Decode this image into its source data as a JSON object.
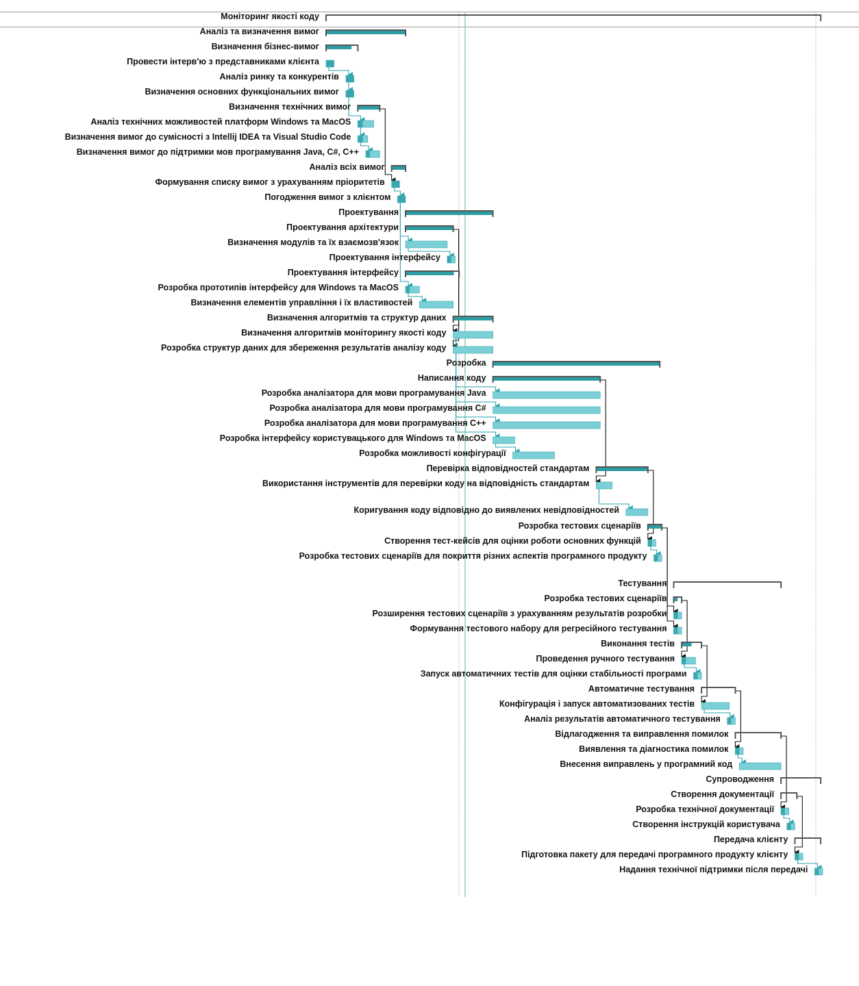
{
  "colors": {
    "summary_bar": "#2e9da3",
    "summary_bracket": "#555555",
    "task_bar": "#7bcfd6",
    "task_bar_edge": "#3aa7b0",
    "link_teal": "#2aa3ad",
    "link_black": "#111111",
    "today_line": "#8fd1a6",
    "dotted_line": "#888888"
  },
  "tasks": [
    {
      "id": 0,
      "name": "Моніторинг якості коду",
      "type": "summary",
      "start": 0,
      "end": 124.5,
      "progress": 0
    },
    {
      "id": 1,
      "name": "Аналіз та визначення вимог",
      "type": "summary",
      "start": 0,
      "end": 20,
      "progress": 1
    },
    {
      "id": 2,
      "name": "Визначення бізнес-вимог",
      "type": "summary",
      "start": 0,
      "end": 8,
      "progress": 0.8
    },
    {
      "id": 3,
      "name": "Провести інтерв'ю з представниками клієнта",
      "type": "task",
      "start": 0,
      "end": 2,
      "progress": 1
    },
    {
      "id": 4,
      "name": "Аналіз ринку та конкурентів",
      "type": "task",
      "start": 5,
      "end": 7,
      "progress": 1
    },
    {
      "id": 5,
      "name": "Визначення основних функціональних вимог",
      "type": "task",
      "start": 5,
      "end": 7,
      "progress": 1
    },
    {
      "id": 6,
      "name": "Визначення технічних вимог",
      "type": "summary",
      "start": 8,
      "end": 13.5,
      "progress": 1
    },
    {
      "id": 7,
      "name": "Аналіз технічних можливостей платформ Windows та MacOS",
      "type": "task",
      "start": 8,
      "end": 12,
      "progress": 0.3
    },
    {
      "id": 8,
      "name": "Визначення вимог до сумісності з Intellij IDEA та Visual Studio Code",
      "type": "task",
      "start": 8,
      "end": 10.5,
      "progress": 0.5
    },
    {
      "id": 9,
      "name": "Визначення вимог до підтримки мов програмування Java, C#, C++",
      "type": "task",
      "start": 10,
      "end": 13.5,
      "progress": 0.3
    },
    {
      "id": 10,
      "name": "Аналіз всіх вимог",
      "type": "summary",
      "start": 16.5,
      "end": 20,
      "progress": 1
    },
    {
      "id": 11,
      "name": "Формування списку вимог з урахуванням пріоритетів",
      "type": "task",
      "start": 16.5,
      "end": 18.5,
      "progress": 1
    },
    {
      "id": 12,
      "name": "Погодження вимог з клієнтом",
      "type": "task",
      "start": 18,
      "end": 20,
      "progress": 1
    },
    {
      "id": 13,
      "name": "Проектування",
      "type": "summary",
      "start": 20,
      "end": 42,
      "progress": 1
    },
    {
      "id": 14,
      "name": "Проектування архітектури",
      "type": "summary",
      "start": 20,
      "end": 32,
      "progress": 1
    },
    {
      "id": 15,
      "name": "Визначення модулів та їх взаємозв'язок",
      "type": "task",
      "start": 20,
      "end": 30.5,
      "progress": 0
    },
    {
      "id": 16,
      "name": "Проектування інтерфейсу",
      "type": "task",
      "start": 30.5,
      "end": 32.5,
      "progress": 0.5
    },
    {
      "id": 17,
      "name": "Проектування інтерфейсу",
      "type": "summary",
      "start": 20,
      "end": 33.5,
      "progress": 0.9
    },
    {
      "id": 18,
      "name": "Розробка прототипів інтерфейсу для Windows та MacOS",
      "type": "task",
      "start": 20,
      "end": 23.5,
      "progress": 0.3
    },
    {
      "id": 19,
      "name": "Визначення елементів управління і їх властивостей",
      "type": "task",
      "start": 23.5,
      "end": 32,
      "progress": 0
    },
    {
      "id": 20,
      "name": "Визначення алгоритмів та структур даних",
      "type": "summary",
      "start": 32,
      "end": 42,
      "progress": 1
    },
    {
      "id": 21,
      "name": "Визначення алгоритмів моніторингу якості коду",
      "type": "task",
      "start": 32,
      "end": 42,
      "progress": 0
    },
    {
      "id": 22,
      "name": "Розробка структур даних для збереження результатів аналізу коду",
      "type": "task",
      "start": 32,
      "end": 42,
      "progress": 0
    },
    {
      "id": 23,
      "name": "Розробка",
      "type": "summary",
      "start": 42,
      "end": 84,
      "progress": 1
    },
    {
      "id": 24,
      "name": "Написання коду",
      "type": "summary",
      "start": 42,
      "end": 69,
      "progress": 1
    },
    {
      "id": 25,
      "name": "Розробка аналізатора для мови програмування Java",
      "type": "task",
      "start": 42,
      "end": 69,
      "progress": 0
    },
    {
      "id": 26,
      "name": "Розробка аналізатора для мови програмування C#",
      "type": "task",
      "start": 42,
      "end": 69,
      "progress": 0
    },
    {
      "id": 27,
      "name": "Розробка аналізатора для мови програмування C++",
      "type": "task",
      "start": 42,
      "end": 69,
      "progress": 0
    },
    {
      "id": 28,
      "name": "Розробка інтерфейсу користувацького для Windows та MacOS",
      "type": "task",
      "start": 42,
      "end": 47.5,
      "progress": 0
    },
    {
      "id": 29,
      "name": "Розробка можливості конфігурації",
      "type": "task",
      "start": 47,
      "end": 57.5,
      "progress": 0
    },
    {
      "id": 30,
      "name": "Перевірка відповідностей стандартам",
      "type": "summary",
      "start": 68,
      "end": 81,
      "progress": 1
    },
    {
      "id": 31,
      "name": "Використання інструментів для перевірки коду на відповідність стандартам",
      "type": "task",
      "start": 68,
      "end": 72,
      "progress": 0
    },
    {
      "id": 32,
      "name": "Коригування коду відповідно до виявлених невідповідностей",
      "type": "task",
      "start": 75.5,
      "end": 81,
      "progress": 0
    },
    {
      "id": 33,
      "name": "Розробка тестових сценаріїв",
      "type": "summary",
      "start": 81,
      "end": 84.5,
      "progress": 1
    },
    {
      "id": 34,
      "name": "Створення тест-кейсів для оцінки роботи основних функцій",
      "type": "task",
      "start": 81,
      "end": 83,
      "progress": 0.5
    },
    {
      "id": 35,
      "name": "Розробка тестових сценаріїв для покриття різних аспектів програмного продукту",
      "type": "task",
      "start": 82.5,
      "end": 84.5,
      "progress": 0.5
    },
    {
      "id": 36,
      "name": "Тестування",
      "type": "summary",
      "start": 87.5,
      "end": 114.5,
      "progress": 0
    },
    {
      "id": 37,
      "name": "Розробка тестових сценаріїв",
      "type": "summary",
      "start": 87.5,
      "end": 89.5,
      "progress": 0.5
    },
    {
      "id": 38,
      "name": "Розширення тестових сценаріїв з урахуванням результатів розробки",
      "type": "task",
      "start": 87.5,
      "end": 89.5,
      "progress": 0.5
    },
    {
      "id": 39,
      "name": "Формування тестового набору для регресійного тестування",
      "type": "task",
      "start": 87.5,
      "end": 89.5,
      "progress": 0.5
    },
    {
      "id": 40,
      "name": "Виконання тестів",
      "type": "summary",
      "start": 89.5,
      "end": 94.5,
      "progress": 0.5
    },
    {
      "id": 41,
      "name": "Проведення ручного тестування",
      "type": "task",
      "start": 89.5,
      "end": 93,
      "progress": 0.3
    },
    {
      "id": 42,
      "name": "Запуск автоматичних тестів для оцінки стабільності програми",
      "type": "task",
      "start": 92.5,
      "end": 94.5,
      "progress": 0.5
    },
    {
      "id": 43,
      "name": "Автоматичне тестування",
      "type": "summary",
      "start": 94.5,
      "end": 103,
      "progress": 0
    },
    {
      "id": 44,
      "name": "Конфігурація і запуск автоматизованих тестів",
      "type": "task",
      "start": 94.5,
      "end": 101.5,
      "progress": 0
    },
    {
      "id": 45,
      "name": "Аналіз результатів автоматичного тестування",
      "type": "task",
      "start": 101,
      "end": 103,
      "progress": 0.5
    },
    {
      "id": 46,
      "name": "Відлагодження та виправлення помилок",
      "type": "summary",
      "start": 103,
      "end": 114.5,
      "progress": 0
    },
    {
      "id": 47,
      "name": "Виявлення та діагностика помилок",
      "type": "task",
      "start": 103,
      "end": 105,
      "progress": 0.5
    },
    {
      "id": 48,
      "name": "Внесення виправлень у програмний код",
      "type": "task",
      "start": 104,
      "end": 114.5,
      "progress": 0
    },
    {
      "id": 49,
      "name": "Супроводження",
      "type": "summary",
      "start": 114.5,
      "end": 124.5,
      "progress": 0
    },
    {
      "id": 50,
      "name": "Створення документації",
      "type": "summary",
      "start": 114.5,
      "end": 118.5,
      "progress": 0
    },
    {
      "id": 51,
      "name": "Розробка технічної документації",
      "type": "task",
      "start": 114.5,
      "end": 116.5,
      "progress": 0.5
    },
    {
      "id": 52,
      "name": "Створення інструкцій користувача",
      "type": "task",
      "start": 116,
      "end": 118,
      "progress": 0.5
    },
    {
      "id": 53,
      "name": "Передача клієнту",
      "type": "summary",
      "start": 118,
      "end": 124.5,
      "progress": 0
    },
    {
      "id": 54,
      "name": "Підготовка пакету для передачі програмного продукту клієнту",
      "type": "task",
      "start": 118,
      "end": 120,
      "progress": 0.5
    },
    {
      "id": 55,
      "name": "Надання технічної підтримки після передачі",
      "type": "task",
      "start": 123,
      "end": 125,
      "progress": 0.5
    }
  ],
  "links": [
    {
      "from": 3,
      "to": 4,
      "color": "teal"
    },
    {
      "from": 4,
      "to": 5,
      "color": "teal"
    },
    {
      "from": 5,
      "to": 7,
      "color": "teal"
    },
    {
      "from": 7,
      "to": 8,
      "color": "teal"
    },
    {
      "from": 8,
      "to": 9,
      "color": "teal"
    },
    {
      "from": 6,
      "to": 11,
      "color": "black"
    },
    {
      "from": 11,
      "to": 12,
      "color": "teal"
    },
    {
      "from": 12,
      "to": 15,
      "color": "teal"
    },
    {
      "from": 15,
      "to": 16,
      "color": "teal"
    },
    {
      "from": 12,
      "to": 18,
      "color": "teal"
    },
    {
      "from": 18,
      "to": 19,
      "color": "teal"
    },
    {
      "from": 14,
      "to": 21,
      "color": "black"
    },
    {
      "from": 14,
      "to": 22,
      "color": "black"
    },
    {
      "from": 21,
      "to": 25,
      "color": "teal"
    },
    {
      "from": 21,
      "to": 26,
      "color": "teal"
    },
    {
      "from": 21,
      "to": 27,
      "color": "teal"
    },
    {
      "from": 21,
      "to": 28,
      "color": "teal"
    },
    {
      "from": 28,
      "to": 29,
      "color": "teal"
    },
    {
      "from": 24,
      "to": 31,
      "color": "black"
    },
    {
      "from": 31,
      "to": 32,
      "color": "teal"
    },
    {
      "from": 30,
      "to": 34,
      "color": "black"
    },
    {
      "from": 34,
      "to": 35,
      "color": "teal"
    },
    {
      "from": 33,
      "to": 38,
      "color": "black"
    },
    {
      "from": 33,
      "to": 39,
      "color": "black"
    },
    {
      "from": 37,
      "to": 41,
      "color": "black"
    },
    {
      "from": 41,
      "to": 42,
      "color": "teal"
    },
    {
      "from": 40,
      "to": 44,
      "color": "black"
    },
    {
      "from": 44,
      "to": 45,
      "color": "teal"
    },
    {
      "from": 43,
      "to": 47,
      "color": "black"
    },
    {
      "from": 47,
      "to": 48,
      "color": "teal"
    },
    {
      "from": 46,
      "to": 51,
      "color": "black"
    },
    {
      "from": 51,
      "to": 52,
      "color": "teal"
    },
    {
      "from": 50,
      "to": 54,
      "color": "black"
    },
    {
      "from": 54,
      "to": 55,
      "color": "teal"
    }
  ]
}
